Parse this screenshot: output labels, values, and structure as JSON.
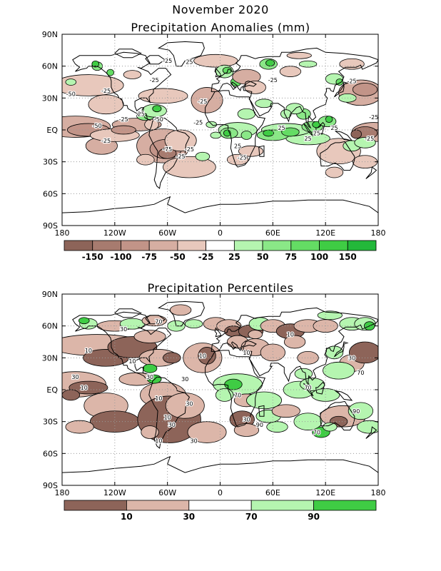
{
  "page": {
    "main_title": "November 2020"
  },
  "chart_data": [
    {
      "type": "heatmap",
      "title": "Precipitation Anomalies (mm)",
      "x_ticks": [
        "180",
        "120W",
        "60W",
        "0",
        "60E",
        "120E",
        "180"
      ],
      "y_ticks": [
        "90N",
        "60N",
        "30N",
        "EQ",
        "30S",
        "60S",
        "90S"
      ],
      "grid": true,
      "colorbar": {
        "labels": [
          "-150",
          "-100",
          "-75",
          "-50",
          "-25",
          "25",
          "50",
          "75",
          "100",
          "150"
        ],
        "colors": [
          "#8d6459",
          "#a77b6f",
          "#c29488",
          "#d6aea2",
          "#e8c8bc",
          "#ffffff",
          "#b5f5b0",
          "#8ae887",
          "#64dc64",
          "#3fcc44",
          "#23b83a"
        ]
      },
      "contour_labels": [
        "-25",
        "-50",
        "-75",
        "25",
        "50"
      ]
    },
    {
      "type": "heatmap",
      "title": "Precipitation Percentiles",
      "x_ticks": [
        "180",
        "120W",
        "60W",
        "0",
        "60E",
        "120E",
        "180"
      ],
      "y_ticks": [
        "90N",
        "60N",
        "30N",
        "EQ",
        "30S",
        "60S",
        "90S"
      ],
      "grid": true,
      "colorbar": {
        "labels": [
          "10",
          "30",
          "70",
          "90"
        ],
        "colors": [
          "#8d6459",
          "#dcb6a9",
          "#ffffff",
          "#b5f5b0",
          "#3fcc44"
        ]
      },
      "contour_labels": [
        "10",
        "30",
        "70",
        "90"
      ]
    }
  ]
}
